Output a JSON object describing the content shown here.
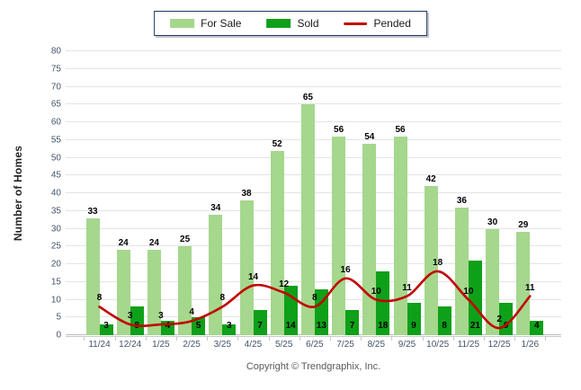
{
  "chart_data": {
    "type": "combo",
    "categories": [
      "11/24",
      "12/24",
      "1/25",
      "2/25",
      "3/25",
      "4/25",
      "5/25",
      "6/25",
      "7/25",
      "8/25",
      "9/25",
      "10/25",
      "11/25",
      "12/25",
      "1/26"
    ],
    "series": [
      {
        "name": "For Sale",
        "type": "bar",
        "color": "#A5D78D",
        "values": [
          33,
          24,
          24,
          25,
          34,
          38,
          52,
          65,
          56,
          54,
          56,
          42,
          36,
          30,
          29
        ]
      },
      {
        "name": "Sold",
        "type": "bar",
        "color": "#0EA019",
        "values": [
          3,
          8,
          4,
          5,
          3,
          7,
          14,
          13,
          7,
          18,
          9,
          8,
          21,
          9,
          4
        ]
      },
      {
        "name": "Pended",
        "type": "line",
        "color": "#C30000",
        "values": [
          8,
          3,
          3,
          4,
          8,
          14,
          12,
          8,
          16,
          10,
          11,
          18,
          10,
          2,
          11
        ]
      }
    ],
    "title": "",
    "xlabel": "",
    "ylabel": "Number of Homes",
    "ylim": [
      0,
      80
    ],
    "ytick_step": 5,
    "grid": true,
    "legend_position": "top"
  },
  "footer": {
    "text": "Copyright © Trendgraphix, Inc."
  },
  "colors": {
    "background": "#FFFFFF",
    "for_sale_bar": "#A5D78D",
    "sold_bar": "#0EA019",
    "pended_line": "#C30000",
    "grid_line": "#E4E4E4",
    "axis_line": "#C9C9C9",
    "tick_text": "#44546A",
    "data_label_text": "#000000",
    "y_axis_title_text": "#262626",
    "footer_text": "#595959",
    "legend_border": "#1F3864"
  }
}
